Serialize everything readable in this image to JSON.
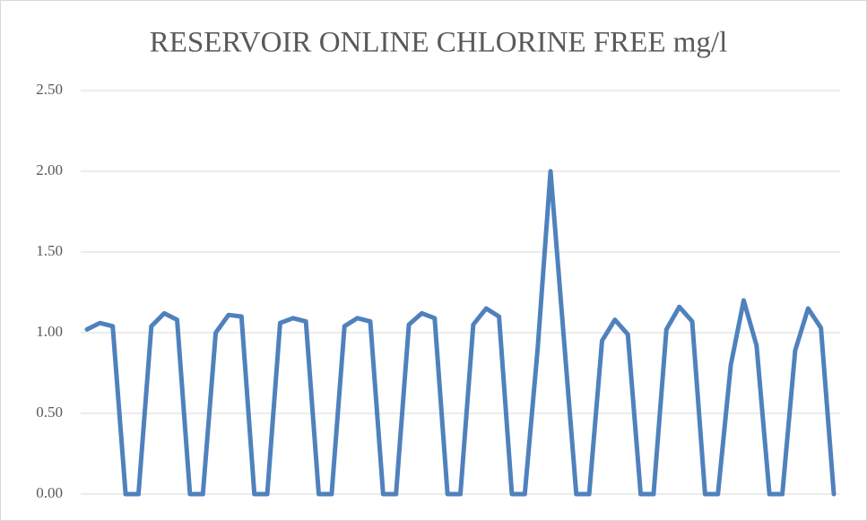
{
  "chart_data": {
    "type": "line",
    "title": "RESERVOIR ONLINE CHLORINE FREE mg/l",
    "categories": [
      null,
      null,
      null,
      null,
      null,
      null,
      null,
      null,
      null,
      null,
      null,
      null,
      null,
      null,
      null,
      null,
      null,
      null,
      null,
      null,
      null,
      null,
      null,
      null,
      null,
      null,
      null,
      null,
      null,
      null,
      null,
      null,
      null,
      null,
      null,
      null,
      null,
      null,
      null,
      null,
      null,
      null,
      null,
      null,
      null,
      null,
      null,
      null,
      null,
      null,
      null,
      null,
      null,
      null,
      null,
      null,
      null,
      null,
      null
    ],
    "series": [
      {
        "name": null,
        "color": "#4f81bd",
        "values": [
          1.02,
          1.06,
          1.04,
          0,
          0,
          1.04,
          1.12,
          1.08,
          0,
          0,
          1.0,
          1.11,
          1.1,
          0,
          0,
          1.06,
          1.09,
          1.07,
          0,
          0,
          1.04,
          1.09,
          1.07,
          0,
          0,
          1.05,
          1.12,
          1.09,
          0,
          0,
          1.05,
          1.15,
          1.1,
          0,
          0,
          0.9,
          2.0,
          1.0,
          0,
          0,
          0.95,
          1.08,
          0.99,
          0,
          0,
          1.02,
          1.16,
          1.07,
          0,
          0,
          0.8,
          1.2,
          0.92,
          0,
          0,
          0.89,
          1.15,
          1.03,
          0
        ]
      }
    ],
    "ylim": [
      0,
      2.5
    ],
    "yticks": [
      {
        "value": 0,
        "label": "0.00"
      },
      {
        "value": 0.5,
        "label": "0.50"
      },
      {
        "value": 1,
        "label": "1.00"
      },
      {
        "value": 1.5,
        "label": "1.50"
      },
      {
        "value": 2,
        "label": "2.00"
      },
      {
        "value": 2.5,
        "label": "2.50"
      }
    ],
    "grid": true
  }
}
